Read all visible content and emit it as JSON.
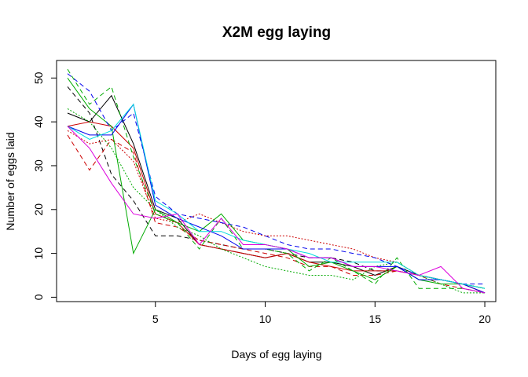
{
  "chart_data": {
    "type": "line",
    "title": "X2M egg laying",
    "xlabel": "Days of egg laying",
    "ylabel": "Number of eggs laid",
    "xlim": [
      0.5,
      20.5
    ],
    "ylim": [
      -1,
      54
    ],
    "xticks": [
      5,
      10,
      15,
      20
    ],
    "yticks": [
      0,
      10,
      20,
      30,
      40,
      50
    ],
    "grid": false,
    "x": [
      1,
      2,
      3,
      4,
      5,
      6,
      7,
      8,
      9,
      10,
      11,
      12,
      13,
      14,
      15,
      16,
      17,
      18,
      19,
      20
    ],
    "series": [
      {
        "color": "#000000",
        "dash": "solid",
        "values": [
          42,
          40,
          46,
          35,
          20,
          18,
          12,
          11,
          10,
          9,
          10,
          8,
          8,
          7,
          5,
          7,
          5,
          4,
          3,
          1
        ]
      },
      {
        "color": "#000000",
        "dash": "dashed",
        "values": [
          48,
          42,
          28,
          22,
          14,
          14,
          13,
          12,
          11,
          11,
          10,
          9,
          9,
          8,
          6,
          6,
          5,
          4,
          3,
          2
        ]
      },
      {
        "color": "#cc0000",
        "dash": "solid",
        "values": [
          39,
          40,
          39,
          34,
          19,
          17,
          12,
          11,
          10,
          9,
          10,
          8,
          7,
          6,
          6,
          6,
          5,
          4,
          3,
          1
        ]
      },
      {
        "color": "#cc0000",
        "dash": "dashed",
        "values": [
          37,
          29,
          36,
          33,
          17,
          16,
          13,
          12,
          11,
          10,
          9,
          7,
          7,
          5,
          5,
          6,
          5,
          3,
          2,
          1
        ]
      },
      {
        "color": "#cc0000",
        "dash": "dotted",
        "values": [
          38,
          35,
          36,
          31,
          18,
          17,
          19,
          17,
          15,
          14,
          14,
          13,
          12,
          11,
          9,
          8,
          5,
          4,
          3,
          2
        ]
      },
      {
        "color": "#00aa00",
        "dash": "solid",
        "values": [
          50,
          43,
          39,
          10,
          20,
          17,
          15,
          19,
          13,
          12,
          11,
          7,
          8,
          6,
          4,
          7,
          4,
          3,
          3,
          2
        ]
      },
      {
        "color": "#00aa00",
        "dash": "dashed",
        "values": [
          52,
          44,
          48,
          32,
          19,
          17,
          11,
          18,
          11,
          11,
          10,
          6,
          9,
          6,
          3,
          9,
          2,
          2,
          2,
          1
        ]
      },
      {
        "color": "#00aa00",
        "dash": "dotted",
        "values": [
          43,
          40,
          34,
          25,
          20,
          16,
          14,
          11,
          9,
          7,
          6,
          5,
          5,
          4,
          7,
          8,
          5,
          3,
          1,
          1
        ]
      },
      {
        "color": "#0000ee",
        "dash": "solid",
        "values": [
          39,
          37,
          37,
          44,
          21,
          18,
          16,
          14,
          11,
          11,
          11,
          9,
          9,
          7,
          7,
          7,
          4,
          4,
          3,
          1
        ]
      },
      {
        "color": "#0000ee",
        "dash": "dashed",
        "values": [
          51,
          47,
          38,
          42,
          23,
          19,
          18,
          17,
          16,
          14,
          12,
          11,
          11,
          10,
          9,
          7,
          5,
          4,
          3,
          3
        ]
      },
      {
        "color": "#00dddd",
        "dash": "solid",
        "values": [
          39,
          36,
          38,
          44,
          22,
          19,
          15,
          15,
          13,
          12,
          11,
          10,
          8,
          8,
          8,
          8,
          5,
          4,
          3,
          2
        ]
      },
      {
        "color": "#dd00dd",
        "dash": "solid",
        "values": [
          39,
          34,
          26,
          19,
          18,
          19,
          12,
          18,
          12,
          12,
          11,
          9,
          9,
          7,
          7,
          6,
          5,
          7,
          2,
          1
        ]
      }
    ]
  }
}
